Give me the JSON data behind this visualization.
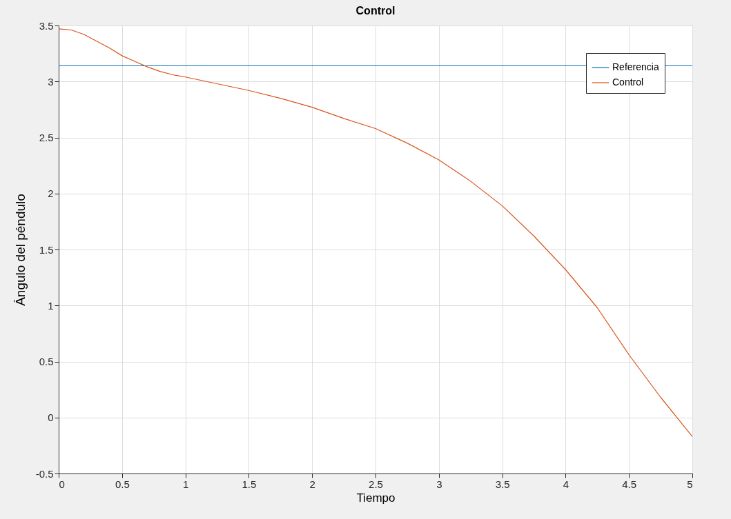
{
  "chart_data": {
    "type": "line",
    "title": "Control",
    "xlabel": "Tiempo",
    "ylabel": "Ángulo del péndulo",
    "xlim": [
      0,
      5
    ],
    "xticks": [
      0,
      0.5,
      1,
      1.5,
      2,
      2.5,
      3,
      3.5,
      4,
      4.5,
      5
    ],
    "ylim": [
      -0.5,
      3.5
    ],
    "yticks": [
      -0.5,
      0,
      0.5,
      1,
      1.5,
      2,
      2.5,
      3,
      3.5
    ],
    "grid": true,
    "legend": "top right",
    "line_style": "solid",
    "series": [
      {
        "name": "Referencia",
        "color": "#0072bd",
        "x": [
          0,
          5
        ],
        "values": [
          3.14,
          3.14
        ]
      },
      {
        "name": "Control",
        "color": "#d95319",
        "x": [
          0,
          0.1,
          0.2,
          0.3,
          0.4,
          0.5,
          0.6,
          0.7,
          0.8,
          0.9,
          1,
          1.25,
          1.5,
          1.75,
          2,
          2.25,
          2.5,
          2.75,
          3,
          3.25,
          3.5,
          3.75,
          4,
          4.25,
          4.5,
          4.75,
          5
        ],
        "values": [
          3.47,
          3.46,
          3.42,
          3.36,
          3.3,
          3.23,
          3.18,
          3.13,
          3.09,
          3.06,
          3.04,
          2.98,
          2.92,
          2.85,
          2.77,
          2.67,
          2.58,
          2.45,
          2.3,
          2.11,
          1.89,
          1.62,
          1.32,
          0.98,
          0.56,
          0.18,
          -0.17
        ]
      }
    ]
  }
}
